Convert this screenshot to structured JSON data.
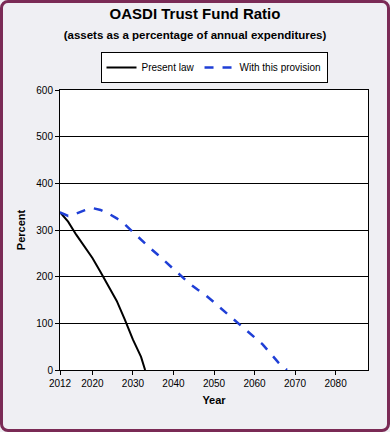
{
  "chart_data": {
    "type": "line",
    "title": "OASDI Trust Fund Ratio",
    "subtitle": "(assets as a percentage of annual expenditures)",
    "x_label": "Year",
    "y_label": "Percent",
    "series": [
      {
        "name": "Present law",
        "color": "#000000",
        "line_style": "solid",
        "x": [
          2012,
          2014,
          2016,
          2018,
          2020,
          2022,
          2024,
          2026,
          2028,
          2030,
          2032,
          2033
        ],
        "values": [
          338,
          318,
          290,
          265,
          240,
          210,
          180,
          148,
          108,
          65,
          28,
          0
        ]
      },
      {
        "name": "With this provision",
        "color": "#1f3fd6",
        "line_style": "dashed",
        "x": [
          2012,
          2014,
          2016,
          2018,
          2020,
          2022,
          2024,
          2026,
          2028,
          2030,
          2032,
          2034,
          2036,
          2038,
          2040,
          2042,
          2044,
          2046,
          2048,
          2050,
          2052,
          2054,
          2056,
          2058,
          2060,
          2062,
          2064,
          2066,
          2068
        ],
        "values": [
          338,
          330,
          335,
          342,
          347,
          343,
          335,
          325,
          312,
          295,
          280,
          263,
          248,
          232,
          216,
          200,
          185,
          172,
          160,
          145,
          130,
          115,
          100,
          85,
          70,
          55,
          35,
          15,
          0
        ]
      }
    ],
    "xlim": [
      2012,
      2088
    ],
    "xticks": [
      2012,
      2020,
      2030,
      2040,
      2050,
      2060,
      2070,
      2080
    ],
    "ylim": [
      0,
      600
    ],
    "yticks": [
      0,
      100,
      200,
      300,
      400,
      500,
      600
    ],
    "grid": true,
    "legend": "top"
  }
}
